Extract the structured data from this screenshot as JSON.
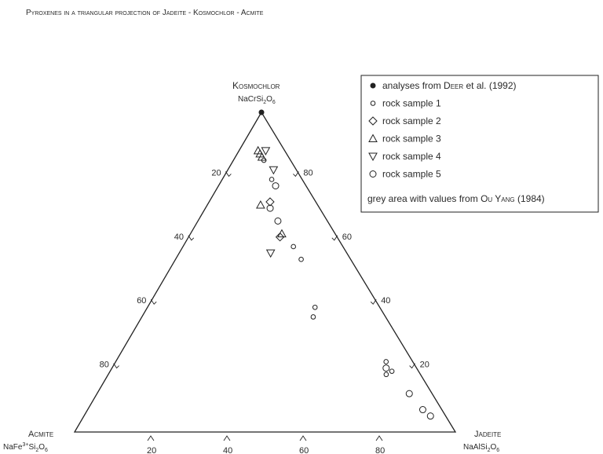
{
  "title": "Pyroxenes in a triangular projection of Jadeite - Kosmochlor - Acmite",
  "chart_data": {
    "type": "scatter",
    "projection": "ternary",
    "vertices": {
      "top": {
        "name": "Kosmochlor",
        "formula_main": "NaCrSi",
        "formula_sub1": "2",
        "formula_mid": "O",
        "formula_sub2": "6"
      },
      "left": {
        "name": "Acmite",
        "formula_main": "NaFe",
        "formula_sup": "3+",
        "formula_mid": "Si",
        "formula_sub1": "2",
        "formula_mid2": "O",
        "formula_sub2": "6"
      },
      "right": {
        "name": "Jadeite",
        "formula_main": "NaAlSi",
        "formula_sub1": "2",
        "formula_mid": "O",
        "formula_sub2": "6"
      }
    },
    "left_edge_ticks": [
      "20",
      "40",
      "60",
      "80"
    ],
    "right_edge_ticks": [
      "80",
      "60",
      "40",
      "20"
    ],
    "bottom_edge_ticks": [
      "20",
      "40",
      "60",
      "80"
    ],
    "legend": {
      "entries": [
        {
          "symbol": "filled-circle",
          "label_pre": "analyses from ",
          "label_sc": "Deer",
          "label_post": " et al. (1992)"
        },
        {
          "symbol": "small-circle",
          "label_pre": "rock sample 1",
          "label_sc": "",
          "label_post": ""
        },
        {
          "symbol": "diamond",
          "label_pre": "rock sample 2",
          "label_sc": "",
          "label_post": ""
        },
        {
          "symbol": "triangle-up",
          "label_pre": "rock sample 3",
          "label_sc": "",
          "label_post": ""
        },
        {
          "symbol": "triangle-down",
          "label_pre": "rock sample 4",
          "label_sc": "",
          "label_post": ""
        },
        {
          "symbol": "circle",
          "label_pre": "rock sample 5",
          "label_sc": "",
          "label_post": ""
        }
      ],
      "note_pre": "grey area with values from ",
      "note_sc": "Ou Yang",
      "note_post": " (1984)"
    },
    "series": [
      {
        "name": "analyses from Deer et al. (1992)",
        "symbol": "filled-circle",
        "points": [
          {
            "kosmochlor": 100,
            "jadeite": 0,
            "acmite": 0
          }
        ]
      },
      {
        "name": "rock sample 1",
        "symbol": "small-circle",
        "points": [
          {
            "kosmochlor": 85,
            "jadeite": 8,
            "acmite": 7
          },
          {
            "kosmochlor": 79,
            "jadeite": 13,
            "acmite": 8
          },
          {
            "kosmochlor": 58,
            "jadeite": 29,
            "acmite": 13
          },
          {
            "kosmochlor": 54,
            "jadeite": 33,
            "acmite": 13
          },
          {
            "kosmochlor": 39,
            "jadeite": 44,
            "acmite": 17
          },
          {
            "kosmochlor": 36,
            "jadeite": 45,
            "acmite": 19
          },
          {
            "kosmochlor": 22,
            "jadeite": 71,
            "acmite": 7
          },
          {
            "kosmochlor": 19,
            "jadeite": 74,
            "acmite": 7
          },
          {
            "kosmochlor": 18,
            "jadeite": 73,
            "acmite": 9
          }
        ]
      },
      {
        "name": "rock sample 2",
        "symbol": "diamond",
        "points": [
          {
            "kosmochlor": 72,
            "jadeite": 16,
            "acmite": 12
          },
          {
            "kosmochlor": 61,
            "jadeite": 24,
            "acmite": 15
          }
        ]
      },
      {
        "name": "rock sample 3",
        "symbol": "triangle-up",
        "points": [
          {
            "kosmochlor": 88,
            "jadeite": 5,
            "acmite": 7
          },
          {
            "kosmochlor": 87,
            "jadeite": 6,
            "acmite": 7
          },
          {
            "kosmochlor": 86,
            "jadeite": 7,
            "acmite": 7
          },
          {
            "kosmochlor": 71,
            "jadeite": 14,
            "acmite": 15
          },
          {
            "kosmochlor": 62,
            "jadeite": 24,
            "acmite": 14
          }
        ]
      },
      {
        "name": "rock sample 4",
        "symbol": "triangle-down",
        "points": [
          {
            "kosmochlor": 88,
            "jadeite": 7,
            "acmite": 5
          },
          {
            "kosmochlor": 82,
            "jadeite": 12,
            "acmite": 6
          },
          {
            "kosmochlor": 56,
            "jadeite": 24,
            "acmite": 20
          }
        ]
      },
      {
        "name": "rock sample 5",
        "symbol": "circle",
        "points": [
          {
            "kosmochlor": 77,
            "jadeite": 15,
            "acmite": 8
          },
          {
            "kosmochlor": 70,
            "jadeite": 17,
            "acmite": 13
          },
          {
            "kosmochlor": 66,
            "jadeite": 21,
            "acmite": 13
          },
          {
            "kosmochlor": 20,
            "jadeite": 72,
            "acmite": 8
          },
          {
            "kosmochlor": 12,
            "jadeite": 82,
            "acmite": 6
          },
          {
            "kosmochlor": 7,
            "jadeite": 88,
            "acmite": 5
          },
          {
            "kosmochlor": 5,
            "jadeite": 91,
            "acmite": 4
          }
        ]
      }
    ]
  }
}
